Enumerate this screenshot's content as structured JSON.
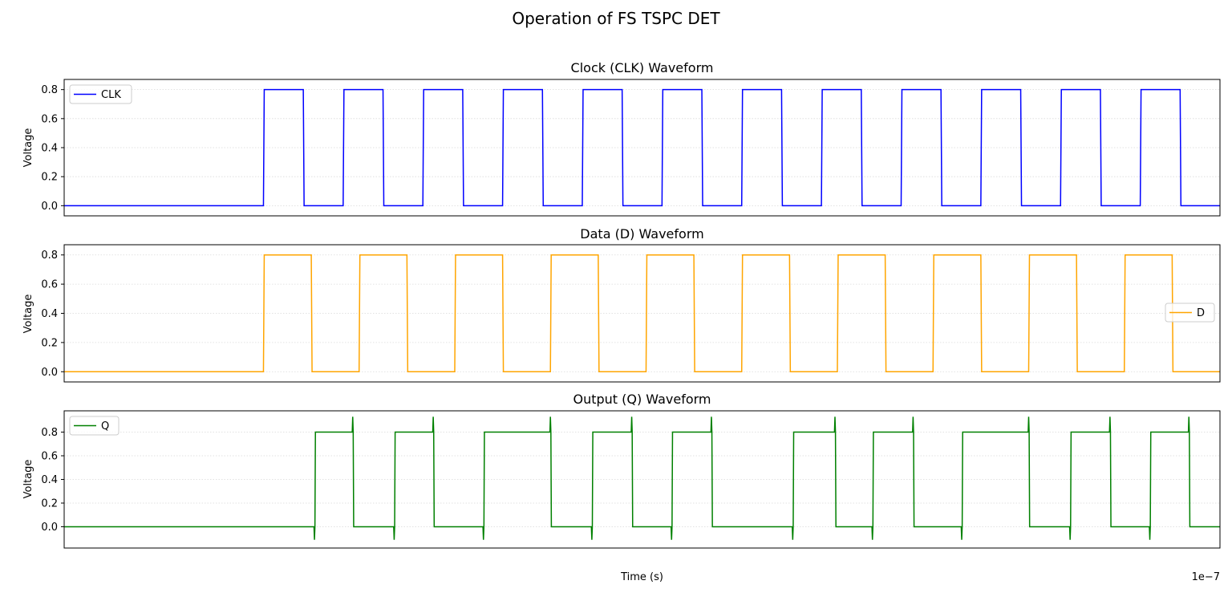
{
  "figure": {
    "title": "Operation of FS TSPC DET",
    "x_offset_label": "1e−7"
  },
  "chart_data": [
    {
      "type": "line",
      "title": "Clock (CLK) Waveform",
      "xlabel": "",
      "ylabel": "Voltage",
      "xlim": [
        1.7975,
        1.812
      ],
      "ylim": [
        -0.07,
        0.87
      ],
      "x_unit_scale": "1e-7",
      "x_ticks": [
        "1.80",
        "1.82",
        "1.84",
        "1.86",
        "1.88",
        "1.90"
      ],
      "x_ticks_visible": false,
      "y_ticks": [
        "0.0",
        "0.2",
        "0.4",
        "0.6",
        "0.8"
      ],
      "grid": true,
      "legend_placement": "upper-left",
      "series": [
        {
          "name": "CLK",
          "color": "#0000ff",
          "low": 0.0,
          "high": 0.8,
          "transitions": [
            [
              1.8,
              "rise"
            ],
            [
              1.8005,
              "fall"
            ],
            [
              1.801,
              "rise"
            ],
            [
              1.8015,
              "fall"
            ],
            [
              1.802,
              "rise"
            ],
            [
              1.8025,
              "fall"
            ],
            [
              1.803,
              "rise"
            ],
            [
              1.8035,
              "fall"
            ],
            [
              1.804,
              "rise"
            ],
            [
              1.8045,
              "fall"
            ],
            [
              1.805,
              "rise"
            ],
            [
              1.8055,
              "fall"
            ],
            [
              1.806,
              "rise"
            ],
            [
              1.8065,
              "fall"
            ],
            [
              1.807,
              "rise"
            ],
            [
              1.8075,
              "fall"
            ],
            [
              1.808,
              "rise"
            ],
            [
              1.8085,
              "fall"
            ],
            [
              1.809,
              "rise"
            ],
            [
              1.8095,
              "fall"
            ],
            [
              1.81,
              "rise"
            ],
            [
              1.8105,
              "fall"
            ],
            [
              1.811,
              "rise"
            ],
            [
              1.8115,
              "fall"
            ]
          ]
        }
      ]
    },
    {
      "type": "line",
      "title": "Data (D) Waveform",
      "xlabel": "",
      "ylabel": "Voltage",
      "xlim": [
        1.7975,
        1.812
      ],
      "ylim": [
        -0.07,
        0.87
      ],
      "x_unit_scale": "1e-7",
      "x_ticks": [
        "1.80",
        "1.82",
        "1.84",
        "1.86",
        "1.88",
        "1.90"
      ],
      "x_ticks_visible": false,
      "y_ticks": [
        "0.0",
        "0.2",
        "0.4",
        "0.6",
        "0.8"
      ],
      "grid": true,
      "legend_placement": "center-right",
      "series": [
        {
          "name": "D",
          "color": "#ffa500",
          "low": 0.0,
          "high": 0.8,
          "transitions": [
            [
              1.8,
              "rise"
            ],
            [
              1.8006,
              "fall"
            ],
            [
              1.8012,
              "rise"
            ],
            [
              1.8018,
              "fall"
            ],
            [
              1.8024,
              "rise"
            ],
            [
              1.803,
              "fall"
            ],
            [
              1.8036,
              "rise"
            ],
            [
              1.8042,
              "fall"
            ],
            [
              1.8048,
              "rise"
            ],
            [
              1.8054,
              "fall"
            ],
            [
              1.806,
              "rise"
            ],
            [
              1.8066,
              "fall"
            ],
            [
              1.8072,
              "rise"
            ],
            [
              1.8078,
              "fall"
            ],
            [
              1.8084,
              "rise"
            ],
            [
              1.809,
              "fall"
            ],
            [
              1.8096,
              "rise"
            ],
            [
              1.8102,
              "fall"
            ],
            [
              1.8108,
              "rise"
            ],
            [
              1.8114,
              "fall"
            ]
          ]
        }
      ]
    },
    {
      "type": "line",
      "title": "Output (Q) Waveform",
      "xlabel": "Time (s)",
      "ylabel": "Voltage",
      "xlim": [
        1.7975,
        1.812
      ],
      "ylim": [
        -0.18,
        0.98
      ],
      "x_unit_scale": "1e-7",
      "x_ticks": [
        "1.80",
        "1.82",
        "1.84",
        "1.86",
        "1.88",
        "1.90"
      ],
      "x_ticks_visible": true,
      "y_ticks": [
        "0.0",
        "0.2",
        "0.4",
        "0.6",
        "0.8"
      ],
      "grid": true,
      "legend_placement": "upper-left",
      "series": [
        {
          "name": "Q",
          "color": "#008000",
          "low": 0.0,
          "high": 0.8,
          "overshoot_high": 0.93,
          "undershoot_low": -0.11,
          "pulses": [
            [
              1.80064,
              1.80112
            ],
            [
              1.80164,
              1.80213
            ],
            [
              1.80276,
              1.8036
            ],
            [
              1.80412,
              1.80462
            ],
            [
              1.80512,
              1.80562
            ],
            [
              1.80664,
              1.80717
            ],
            [
              1.80764,
              1.80815
            ],
            [
              1.80876,
              1.8096
            ],
            [
              1.81012,
              1.81062
            ],
            [
              1.81112,
              1.81161
            ]
          ]
        }
      ]
    }
  ]
}
